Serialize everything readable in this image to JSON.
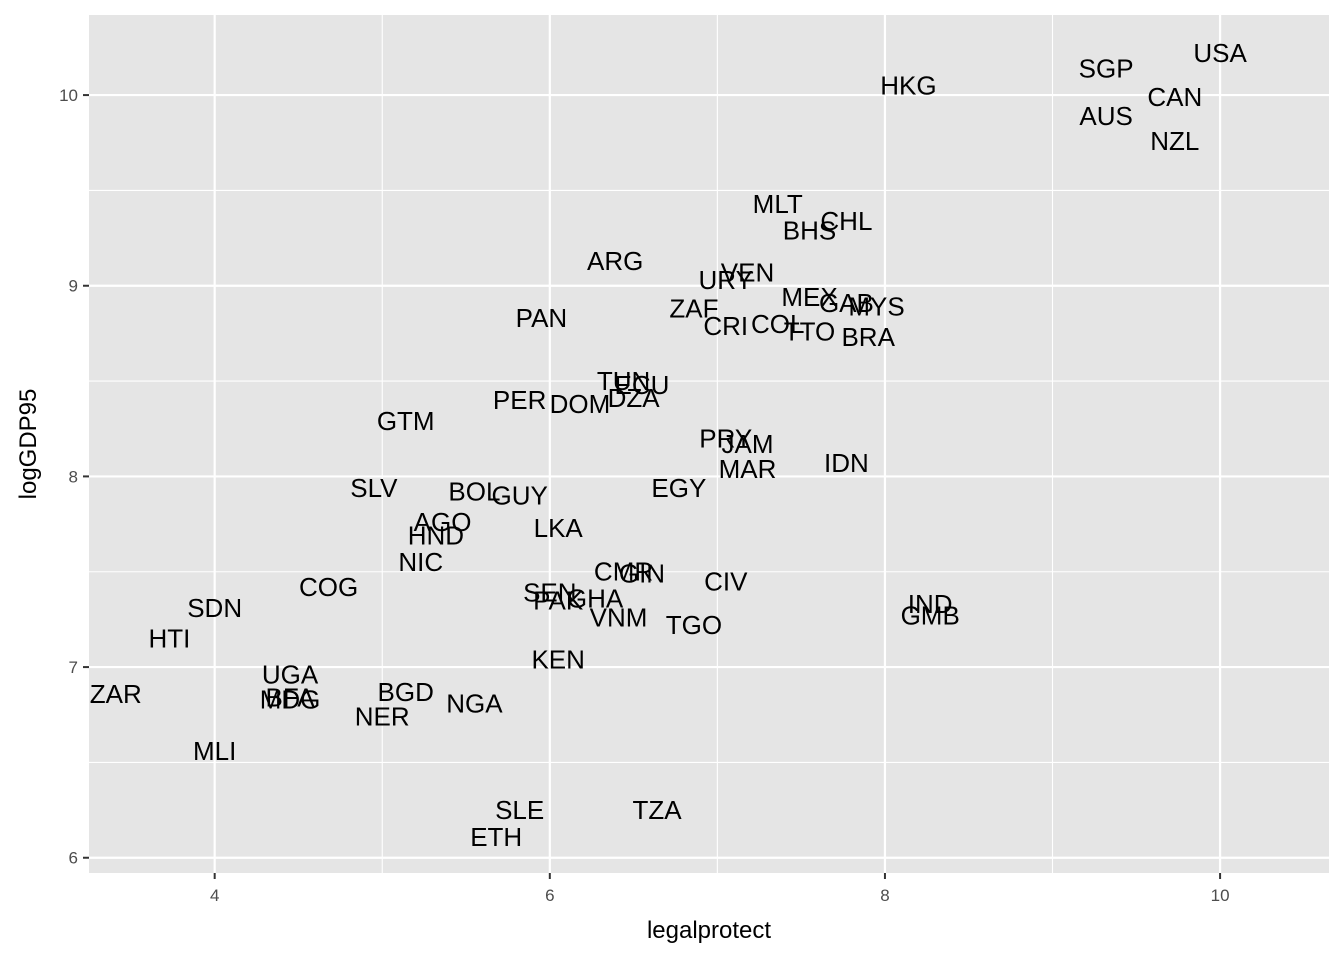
{
  "chart_data": {
    "type": "scatter",
    "title": "",
    "xlabel": "legalprotect",
    "ylabel": "logGDP95",
    "xlim": [
      3.25,
      10.65
    ],
    "ylim": [
      5.92,
      10.42
    ],
    "x_ticks": [
      4,
      6,
      8,
      10
    ],
    "y_ticks": [
      6,
      7,
      8,
      9,
      10
    ],
    "x_tick_labels": [
      "4",
      "6",
      "8",
      "10"
    ],
    "y_tick_labels": [
      "6",
      "7",
      "8",
      "9",
      "10"
    ],
    "grid": true,
    "legend": "none",
    "colors": {
      "panel": "#e5e5e5",
      "grid": "#ffffff",
      "text": "#000000",
      "tick_text": "#4d4d4d",
      "tick_mark": "#333333"
    },
    "points": [
      {
        "label": "USA",
        "x": 10.0,
        "y": 10.22
      },
      {
        "label": "SGP",
        "x": 9.32,
        "y": 10.14
      },
      {
        "label": "HKG",
        "x": 8.14,
        "y": 10.05
      },
      {
        "label": "CAN",
        "x": 9.73,
        "y": 9.99
      },
      {
        "label": "AUS",
        "x": 9.32,
        "y": 9.89
      },
      {
        "label": "NZL",
        "x": 9.73,
        "y": 9.76
      },
      {
        "label": "MLT",
        "x": 7.36,
        "y": 9.43
      },
      {
        "label": "CHL",
        "x": 7.77,
        "y": 9.34
      },
      {
        "label": "BHS",
        "x": 7.55,
        "y": 9.29
      },
      {
        "label": "ARG",
        "x": 6.39,
        "y": 9.13
      },
      {
        "label": "VEN",
        "x": 7.18,
        "y": 9.07
      },
      {
        "label": "URY",
        "x": 7.05,
        "y": 9.03
      },
      {
        "label": "MEX",
        "x": 7.55,
        "y": 8.94
      },
      {
        "label": "GAB",
        "x": 7.77,
        "y": 8.91
      },
      {
        "label": "MYS",
        "x": 7.95,
        "y": 8.89
      },
      {
        "label": "ZAF",
        "x": 6.86,
        "y": 8.88
      },
      {
        "label": "PAN",
        "x": 5.95,
        "y": 8.83
      },
      {
        "label": "COL",
        "x": 7.36,
        "y": 8.8
      },
      {
        "label": "CRI",
        "x": 7.05,
        "y": 8.79
      },
      {
        "label": "TTO",
        "x": 7.55,
        "y": 8.76
      },
      {
        "label": "BRA",
        "x": 7.9,
        "y": 8.73
      },
      {
        "label": "TUN",
        "x": 6.44,
        "y": 8.5
      },
      {
        "label": "ECU",
        "x": 6.55,
        "y": 8.48
      },
      {
        "label": "DZA",
        "x": 6.5,
        "y": 8.41
      },
      {
        "label": "PER",
        "x": 5.82,
        "y": 8.4
      },
      {
        "label": "DOM",
        "x": 6.18,
        "y": 8.38
      },
      {
        "label": "GTM",
        "x": 5.14,
        "y": 8.29
      },
      {
        "label": "PRY",
        "x": 7.05,
        "y": 8.2
      },
      {
        "label": "JAM",
        "x": 7.18,
        "y": 8.17
      },
      {
        "label": "IDN",
        "x": 7.77,
        "y": 8.07
      },
      {
        "label": "MAR",
        "x": 7.18,
        "y": 8.04
      },
      {
        "label": "SLV",
        "x": 4.95,
        "y": 7.94
      },
      {
        "label": "EGY",
        "x": 6.77,
        "y": 7.94
      },
      {
        "label": "BOL",
        "x": 5.55,
        "y": 7.92
      },
      {
        "label": "GUY",
        "x": 5.82,
        "y": 7.9
      },
      {
        "label": "AGO",
        "x": 5.36,
        "y": 7.76
      },
      {
        "label": "LKA",
        "x": 6.05,
        "y": 7.73
      },
      {
        "label": "HND",
        "x": 5.32,
        "y": 7.69
      },
      {
        "label": "NIC",
        "x": 5.23,
        "y": 7.55
      },
      {
        "label": "CMR",
        "x": 6.44,
        "y": 7.5
      },
      {
        "label": "GIN",
        "x": 6.55,
        "y": 7.49
      },
      {
        "label": "CIV",
        "x": 7.05,
        "y": 7.45
      },
      {
        "label": "COG",
        "x": 4.68,
        "y": 7.42
      },
      {
        "label": "SEN",
        "x": 6.0,
        "y": 7.39
      },
      {
        "label": "PAK",
        "x": 6.05,
        "y": 7.35
      },
      {
        "label": "GHA",
        "x": 6.27,
        "y": 7.36
      },
      {
        "label": "IND",
        "x": 8.27,
        "y": 7.33
      },
      {
        "label": "SDN",
        "x": 4.0,
        "y": 7.31
      },
      {
        "label": "GMB",
        "x": 8.27,
        "y": 7.27
      },
      {
        "label": "VNM",
        "x": 6.41,
        "y": 7.26
      },
      {
        "label": "TGO",
        "x": 6.86,
        "y": 7.22
      },
      {
        "label": "HTI",
        "x": 3.73,
        "y": 7.15
      },
      {
        "label": "KEN",
        "x": 6.05,
        "y": 7.04
      },
      {
        "label": "UGA",
        "x": 4.45,
        "y": 6.96
      },
      {
        "label": "ZAR",
        "x": 3.41,
        "y": 6.86
      },
      {
        "label": "BGD",
        "x": 5.14,
        "y": 6.87
      },
      {
        "label": "BFA",
        "x": 4.45,
        "y": 6.84
      },
      {
        "label": "MDG",
        "x": 4.45,
        "y": 6.83
      },
      {
        "label": "NGA",
        "x": 5.55,
        "y": 6.81
      },
      {
        "label": "NER",
        "x": 5.0,
        "y": 6.74
      },
      {
        "label": "MLI",
        "x": 4.0,
        "y": 6.56
      },
      {
        "label": "SLE",
        "x": 5.82,
        "y": 6.25
      },
      {
        "label": "TZA",
        "x": 6.64,
        "y": 6.25
      },
      {
        "label": "ETH",
        "x": 5.68,
        "y": 6.11
      }
    ]
  }
}
